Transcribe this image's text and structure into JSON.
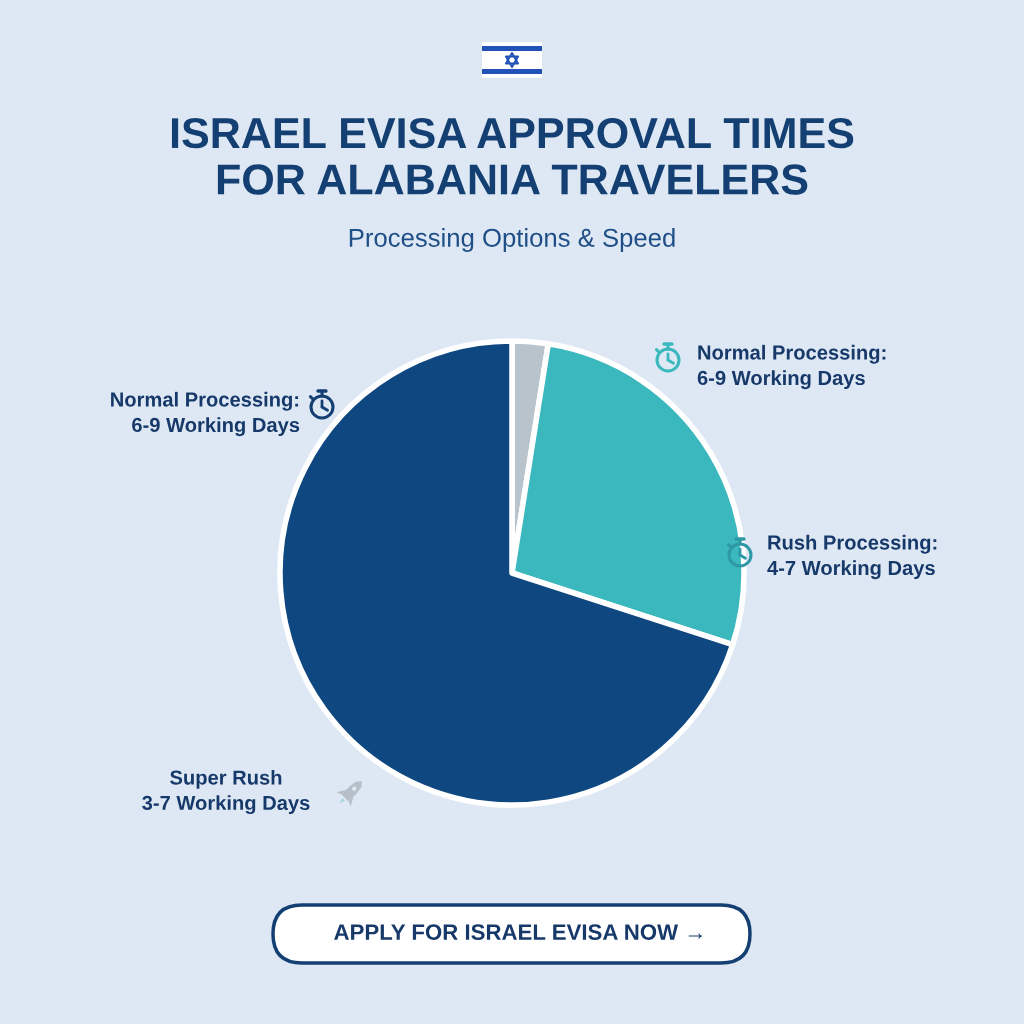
{
  "chart_data": {
    "type": "pie",
    "title": "ISRAEL EVISA APPROVAL TIMES\nFOR ALABANIA TRAVELERS",
    "subtitle": "Processing Options & Speed",
    "categories": [
      null,
      null,
      null
    ],
    "values": [
      2.5,
      27.5,
      70
    ],
    "colors": [
      "#b9c3cb",
      "#3ab8bd",
      "#0f4780"
    ],
    "annotations": [
      "Normal Processing:\n6-9 Working Days",
      "Rush Processing:\n4-7 Working Days",
      "Normal Processing:\n6-9 Working Days",
      "Super Rush\n3-7 Working Days",
      "APPLY FOR ISRAEL EVISA NOW →"
    ]
  }
}
